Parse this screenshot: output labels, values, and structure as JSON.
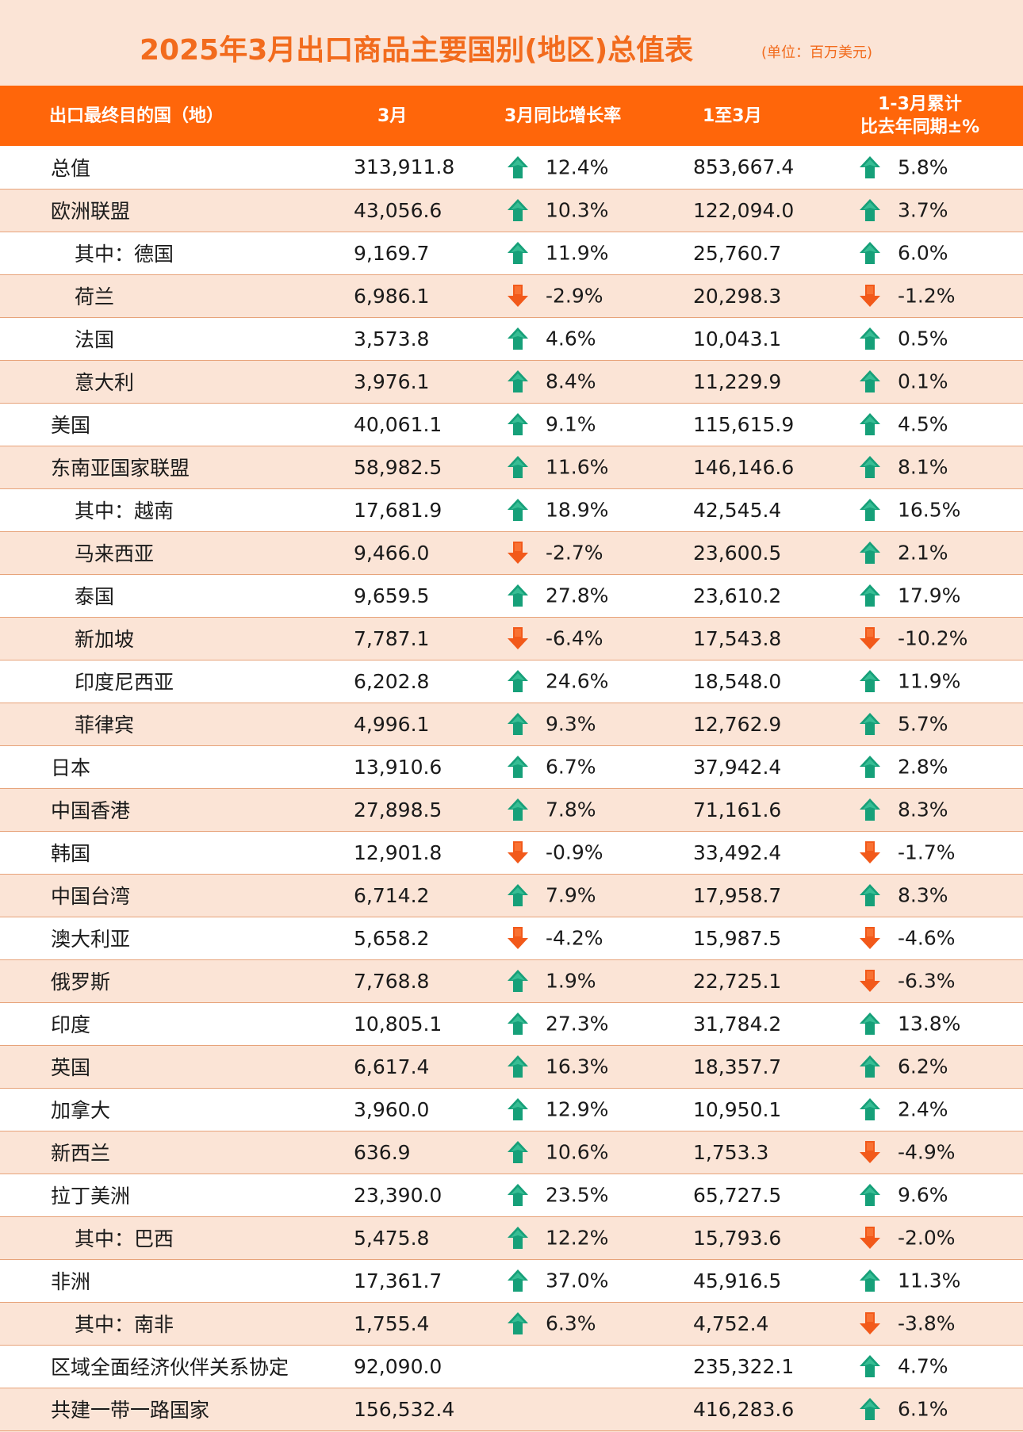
{
  "title": "2025年3月出口商品主要国别(地区)总值表",
  "unit": "(单位：百万美元)",
  "colors": {
    "accent": "#ff660a",
    "up": "#16a079",
    "down": "#f2591a",
    "band": "#fbe4d6"
  },
  "headers": {
    "country": "出口最终目的国（地）",
    "march": "3月",
    "march_yoy": "3月同比增长率",
    "jan_mar": "1至3月",
    "cum_line1": "1-3月累计",
    "cum_line2": "比去年同期±%"
  },
  "rows": [
    {
      "name": "总值",
      "sub": false,
      "march": "313,911.8",
      "yoy": "12.4%",
      "yoy_dir": "up",
      "cum": "853,667.4",
      "cum_pct": "5.8%",
      "cum_dir": "up"
    },
    {
      "name": "欧洲联盟",
      "sub": false,
      "march": "43,056.6",
      "yoy": "10.3%",
      "yoy_dir": "up",
      "cum": "122,094.0",
      "cum_pct": "3.7%",
      "cum_dir": "up"
    },
    {
      "name": "其中：德国",
      "sub": true,
      "march": "9,169.7",
      "yoy": "11.9%",
      "yoy_dir": "up",
      "cum": "25,760.7",
      "cum_pct": "6.0%",
      "cum_dir": "up"
    },
    {
      "name": "荷兰",
      "sub": true,
      "march": "6,986.1",
      "yoy": "-2.9%",
      "yoy_dir": "down",
      "cum": "20,298.3",
      "cum_pct": "-1.2%",
      "cum_dir": "down"
    },
    {
      "name": "法国",
      "sub": true,
      "march": "3,573.8",
      "yoy": "4.6%",
      "yoy_dir": "up",
      "cum": "10,043.1",
      "cum_pct": "0.5%",
      "cum_dir": "up"
    },
    {
      "name": "意大利",
      "sub": true,
      "march": "3,976.1",
      "yoy": "8.4%",
      "yoy_dir": "up",
      "cum": "11,229.9",
      "cum_pct": "0.1%",
      "cum_dir": "up"
    },
    {
      "name": "美国",
      "sub": false,
      "march": "40,061.1",
      "yoy": "9.1%",
      "yoy_dir": "up",
      "cum": "115,615.9",
      "cum_pct": "4.5%",
      "cum_dir": "up"
    },
    {
      "name": "东南亚国家联盟",
      "sub": false,
      "march": "58,982.5",
      "yoy": "11.6%",
      "yoy_dir": "up",
      "cum": "146,146.6",
      "cum_pct": "8.1%",
      "cum_dir": "up"
    },
    {
      "name": "其中：越南",
      "sub": true,
      "march": "17,681.9",
      "yoy": "18.9%",
      "yoy_dir": "up",
      "cum": "42,545.4",
      "cum_pct": "16.5%",
      "cum_dir": "up"
    },
    {
      "name": "马来西亚",
      "sub": true,
      "march": "9,466.0",
      "yoy": "-2.7%",
      "yoy_dir": "down",
      "cum": "23,600.5",
      "cum_pct": "2.1%",
      "cum_dir": "up"
    },
    {
      "name": "泰国",
      "sub": true,
      "march": "9,659.5",
      "yoy": "27.8%",
      "yoy_dir": "up",
      "cum": "23,610.2",
      "cum_pct": "17.9%",
      "cum_dir": "up"
    },
    {
      "name": "新加坡",
      "sub": true,
      "march": "7,787.1",
      "yoy": "-6.4%",
      "yoy_dir": "down",
      "cum": "17,543.8",
      "cum_pct": "-10.2%",
      "cum_dir": "down"
    },
    {
      "name": "印度尼西亚",
      "sub": true,
      "march": "6,202.8",
      "yoy": "24.6%",
      "yoy_dir": "up",
      "cum": "18,548.0",
      "cum_pct": "11.9%",
      "cum_dir": "up"
    },
    {
      "name": "菲律宾",
      "sub": true,
      "march": "4,996.1",
      "yoy": "9.3%",
      "yoy_dir": "up",
      "cum": "12,762.9",
      "cum_pct": "5.7%",
      "cum_dir": "up"
    },
    {
      "name": "日本",
      "sub": false,
      "march": "13,910.6",
      "yoy": "6.7%",
      "yoy_dir": "up",
      "cum": "37,942.4",
      "cum_pct": "2.8%",
      "cum_dir": "up"
    },
    {
      "name": "中国香港",
      "sub": false,
      "march": "27,898.5",
      "yoy": "7.8%",
      "yoy_dir": "up",
      "cum": "71,161.6",
      "cum_pct": "8.3%",
      "cum_dir": "up"
    },
    {
      "name": "韩国",
      "sub": false,
      "march": "12,901.8",
      "yoy": "-0.9%",
      "yoy_dir": "down",
      "cum": "33,492.4",
      "cum_pct": "-1.7%",
      "cum_dir": "down"
    },
    {
      "name": "中国台湾",
      "sub": false,
      "march": "6,714.2",
      "yoy": "7.9%",
      "yoy_dir": "up",
      "cum": "17,958.7",
      "cum_pct": "8.3%",
      "cum_dir": "up"
    },
    {
      "name": "澳大利亚",
      "sub": false,
      "march": "5,658.2",
      "yoy": "-4.2%",
      "yoy_dir": "down",
      "cum": "15,987.5",
      "cum_pct": "-4.6%",
      "cum_dir": "down"
    },
    {
      "name": "俄罗斯",
      "sub": false,
      "march": "7,768.8",
      "yoy": "1.9%",
      "yoy_dir": "up",
      "cum": "22,725.1",
      "cum_pct": "-6.3%",
      "cum_dir": "down"
    },
    {
      "name": "印度",
      "sub": false,
      "march": "10,805.1",
      "yoy": "27.3%",
      "yoy_dir": "up",
      "cum": "31,784.2",
      "cum_pct": "13.8%",
      "cum_dir": "up"
    },
    {
      "name": "英国",
      "sub": false,
      "march": "6,617.4",
      "yoy": "16.3%",
      "yoy_dir": "up",
      "cum": "18,357.7",
      "cum_pct": "6.2%",
      "cum_dir": "up"
    },
    {
      "name": "加拿大",
      "sub": false,
      "march": "3,960.0",
      "yoy": "12.9%",
      "yoy_dir": "up",
      "cum": "10,950.1",
      "cum_pct": "2.4%",
      "cum_dir": "up"
    },
    {
      "name": "新西兰",
      "sub": false,
      "march": "636.9",
      "yoy": "10.6%",
      "yoy_dir": "up",
      "cum": "1,753.3",
      "cum_pct": "-4.9%",
      "cum_dir": "down"
    },
    {
      "name": "拉丁美洲",
      "sub": false,
      "march": "23,390.0",
      "yoy": "23.5%",
      "yoy_dir": "up",
      "cum": "65,727.5",
      "cum_pct": "9.6%",
      "cum_dir": "up"
    },
    {
      "name": "其中：巴西",
      "sub": true,
      "march": "5,475.8",
      "yoy": "12.2%",
      "yoy_dir": "up",
      "cum": "15,793.6",
      "cum_pct": "-2.0%",
      "cum_dir": "down"
    },
    {
      "name": "非洲",
      "sub": false,
      "march": "17,361.7",
      "yoy": "37.0%",
      "yoy_dir": "up",
      "cum": "45,916.5",
      "cum_pct": "11.3%",
      "cum_dir": "up"
    },
    {
      "name": "其中：南非",
      "sub": true,
      "march": "1,755.4",
      "yoy": "6.3%",
      "yoy_dir": "up",
      "cum": "4,752.4",
      "cum_pct": "-3.8%",
      "cum_dir": "down"
    },
    {
      "name": "区域全面经济伙伴关系协定",
      "sub": false,
      "march": "92,090.0",
      "yoy": "",
      "yoy_dir": "",
      "cum": "235,322.1",
      "cum_pct": "4.7%",
      "cum_dir": "up"
    },
    {
      "name": "共建一带一路国家",
      "sub": false,
      "march": "156,532.4",
      "yoy": "",
      "yoy_dir": "",
      "cum": "416,283.6",
      "cum_pct": "6.1%",
      "cum_dir": "up"
    }
  ]
}
